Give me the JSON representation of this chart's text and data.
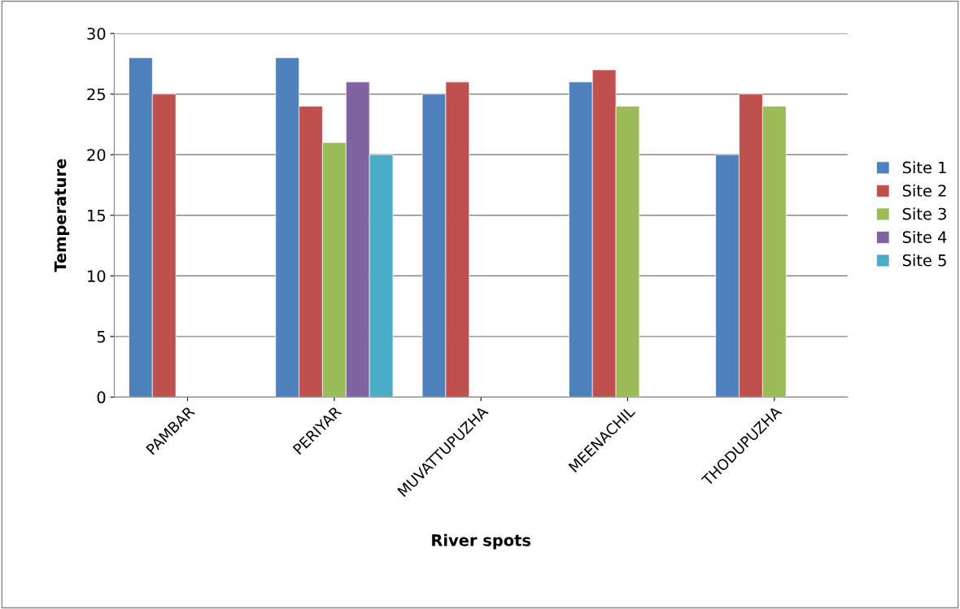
{
  "chart_data": {
    "type": "bar",
    "xlabel": "River spots",
    "ylabel": "Temperature",
    "categories": [
      "PAMBAR",
      "PERIYAR",
      "MUVATTUPUZHA",
      "MEENACHIL",
      "THODUPUZHA"
    ],
    "series": [
      {
        "name": "Site 1",
        "color": "#4f81bd",
        "values": [
          28,
          28,
          25,
          26,
          20
        ]
      },
      {
        "name": "Site 2",
        "color": "#c0504d",
        "values": [
          25,
          24,
          26,
          27,
          25
        ]
      },
      {
        "name": "Site 3",
        "color": "#9bbb59",
        "values": [
          null,
          21,
          null,
          24,
          24
        ]
      },
      {
        "name": "Site 4",
        "color": "#8064a2",
        "values": [
          null,
          26,
          null,
          null,
          null
        ]
      },
      {
        "name": "Site 5",
        "color": "#4bacc6",
        "values": [
          null,
          20,
          null,
          null,
          null
        ]
      }
    ],
    "ylim": [
      0,
      30
    ],
    "yticks": [
      0,
      5,
      10,
      15,
      20,
      25,
      30
    ],
    "grid": "y",
    "legend": "right"
  }
}
